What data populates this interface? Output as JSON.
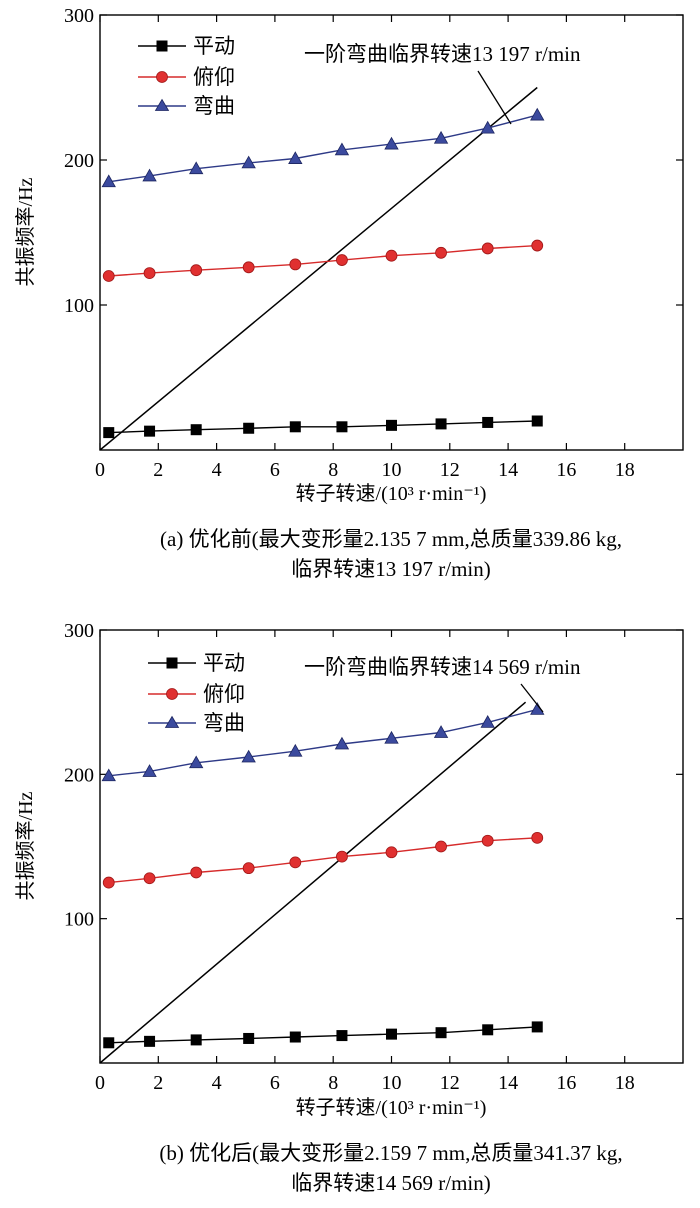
{
  "chart_data": [
    {
      "type": "line",
      "x": [
        0.3,
        1.7,
        3.3,
        5.1,
        6.7,
        8.3,
        10.0,
        11.7,
        13.3,
        15.0
      ],
      "series": [
        {
          "name": "平动",
          "color": "#000000",
          "marker": "square",
          "values": [
            12,
            13,
            14,
            15,
            16,
            16,
            17,
            18,
            19,
            20
          ]
        },
        {
          "name": "俯仰",
          "color": "#d62b2b",
          "marker": "circle",
          "values": [
            120,
            122,
            124,
            126,
            128,
            131,
            134,
            136,
            139,
            141
          ]
        },
        {
          "name": "弯曲",
          "color": "#2e3a87",
          "marker": "triangle",
          "values": [
            185,
            189,
            194,
            198,
            201,
            207,
            211,
            215,
            222,
            231
          ]
        }
      ],
      "critical_line": {
        "x": [
          0.0,
          15.0
        ],
        "y": [
          0,
          250
        ]
      },
      "annotation": "一阶弯曲临界转速13 197 r/min",
      "xlim": [
        0,
        20
      ],
      "ylim": [
        0,
        300
      ],
      "xticks": [
        "0",
        "2",
        "4",
        "6",
        "8",
        "10",
        "12",
        "14",
        "16",
        "18"
      ],
      "yticks": [
        "100",
        "200",
        "300"
      ],
      "xlabel": "转子转速/(10³ r·min⁻¹)",
      "ylabel": "共振频率/Hz",
      "caption_line1": "(a) 优化前(最大变形量2.135 7 mm,总质量339.86 kg,",
      "caption_line2": "临界转速13 197 r/min)"
    },
    {
      "type": "line",
      "x": [
        0.3,
        1.7,
        3.3,
        5.1,
        6.7,
        8.3,
        10.0,
        11.7,
        13.3,
        15.0
      ],
      "series": [
        {
          "name": "平动",
          "color": "#000000",
          "marker": "square",
          "values": [
            14,
            15,
            16,
            17,
            18,
            19,
            20,
            21,
            23,
            25
          ]
        },
        {
          "name": "俯仰",
          "color": "#d62b2b",
          "marker": "circle",
          "values": [
            125,
            128,
            132,
            135,
            139,
            143,
            146,
            150,
            154,
            156
          ]
        },
        {
          "name": "弯曲",
          "color": "#2e3a87",
          "marker": "triangle",
          "values": [
            199,
            202,
            208,
            212,
            216,
            221,
            225,
            229,
            236,
            245
          ]
        }
      ],
      "critical_line": {
        "x": [
          0.0,
          14.6
        ],
        "y": [
          0,
          250
        ]
      },
      "annotation": "一阶弯曲临界转速14 569 r/min",
      "xlim": [
        0,
        20
      ],
      "ylim": [
        0,
        300
      ],
      "xticks": [
        "0",
        "2",
        "4",
        "6",
        "8",
        "10",
        "12",
        "14",
        "16",
        "18"
      ],
      "yticks": [
        "100",
        "200",
        "300"
      ],
      "xlabel": "转子转速/(10³ r·min⁻¹)",
      "ylabel": "共振频率/Hz",
      "caption_line1": "(b) 优化后(最大变形量2.159 7 mm,总质量341.37 kg,",
      "caption_line2": "临界转速14 569 r/min)"
    }
  ]
}
